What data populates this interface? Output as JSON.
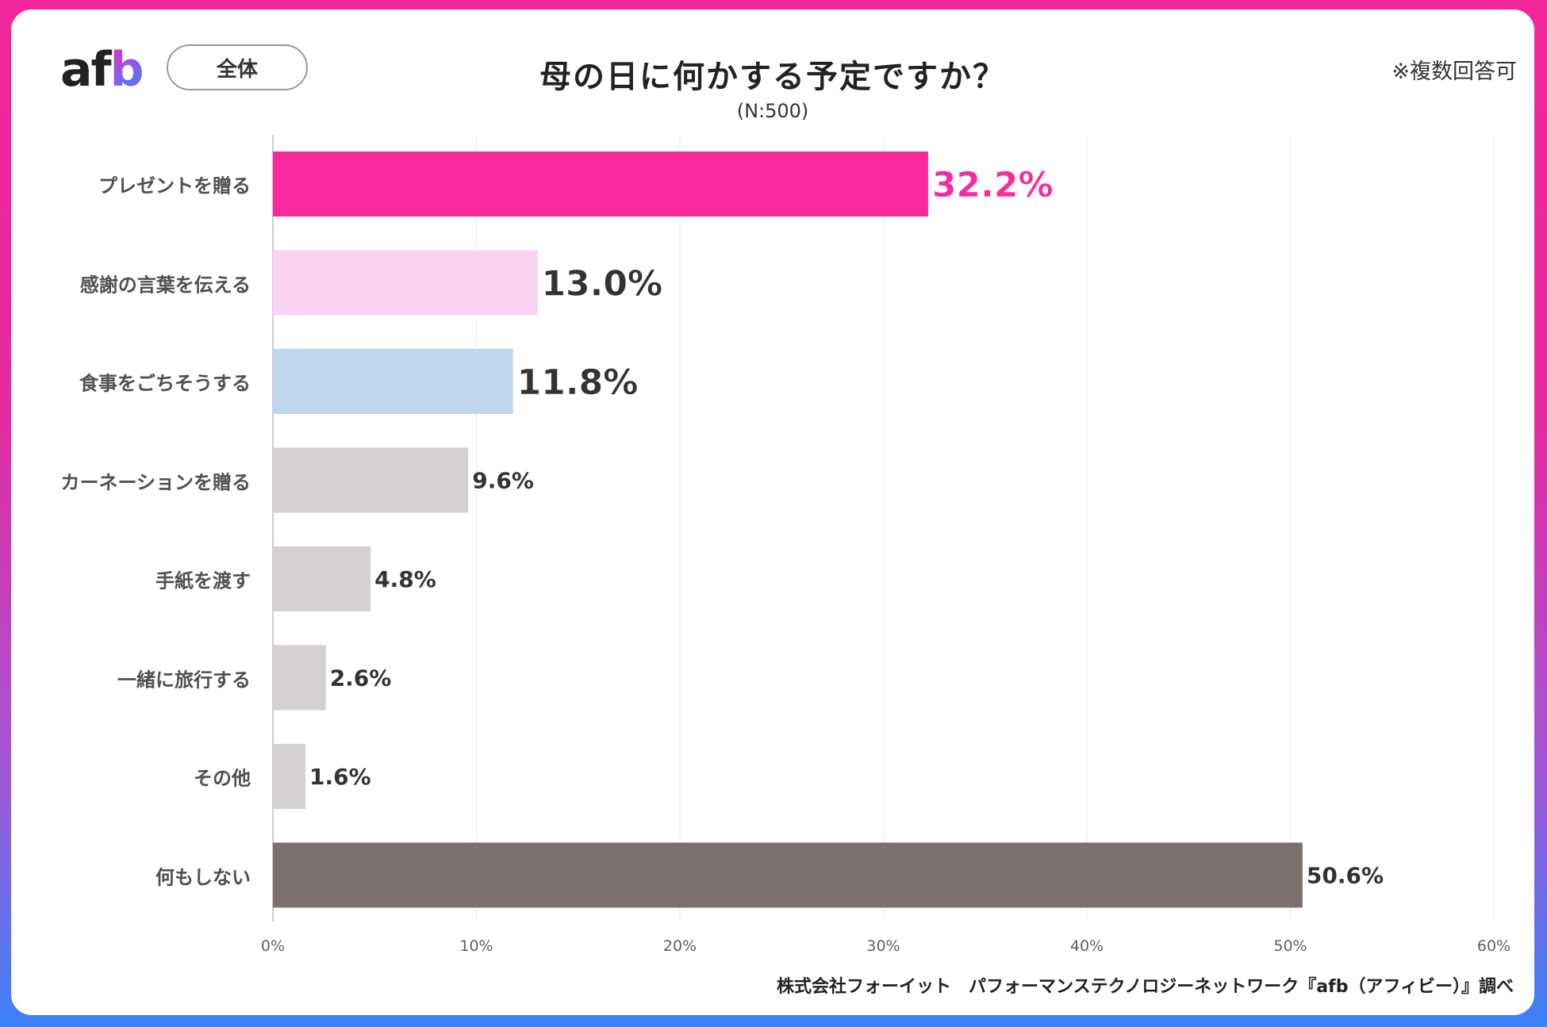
{
  "logo": {
    "a": "a",
    "f": "f",
    "b": "b"
  },
  "scope_label": "全体",
  "note": "※複数回答可",
  "source": "株式会社フォーイット　パフォーマンステクノロジーネットワーク『afb（アフィビー）』調べ",
  "colors": {
    "accent_pink": "#f82a9e",
    "light_pink": "#fbd3f2",
    "light_blue": "#bed7ed",
    "gray": "#d5d1d1",
    "dark_gray": "#7a716f"
  },
  "chart_data": {
    "type": "bar",
    "orientation": "horizontal",
    "title": "母の日に何かする予定ですか？",
    "subtitle": "(N:500)",
    "xlabel": "",
    "ylabel": "",
    "xlim": [
      0,
      60
    ],
    "ticks": [
      0,
      10,
      20,
      30,
      40,
      50,
      60
    ],
    "tick_labels": [
      "0%",
      "10%",
      "20%",
      "30%",
      "40%",
      "50%",
      "60%"
    ],
    "grid": true,
    "categories": [
      "プレゼントを贈る",
      "感謝の言葉を伝える",
      "食事をごちそうする",
      "カーネーションを贈る",
      "手紙を渡す",
      "一緒に旅行する",
      "その他",
      "何もしない"
    ],
    "values": [
      32.2,
      13.0,
      11.8,
      9.6,
      4.8,
      2.6,
      1.6,
      50.6
    ],
    "value_labels": [
      "32.2%",
      "13.0%",
      "11.8%",
      "9.6%",
      "4.8%",
      "2.6%",
      "1.6%",
      "50.6%"
    ],
    "bar_colors": [
      "#f82a9e",
      "#fbd3f2",
      "#bed7ed",
      "#d5d1d1",
      "#d5d1d1",
      "#d5d1d1",
      "#d5d1d1",
      "#7a716f"
    ],
    "label_colors": [
      "#f82a9e",
      "#333333",
      "#333333",
      "#333333",
      "#333333",
      "#333333",
      "#333333",
      "#333333"
    ],
    "label_emphasis": [
      "large",
      "large",
      "large",
      "normal",
      "normal",
      "normal",
      "normal",
      "normal"
    ]
  }
}
